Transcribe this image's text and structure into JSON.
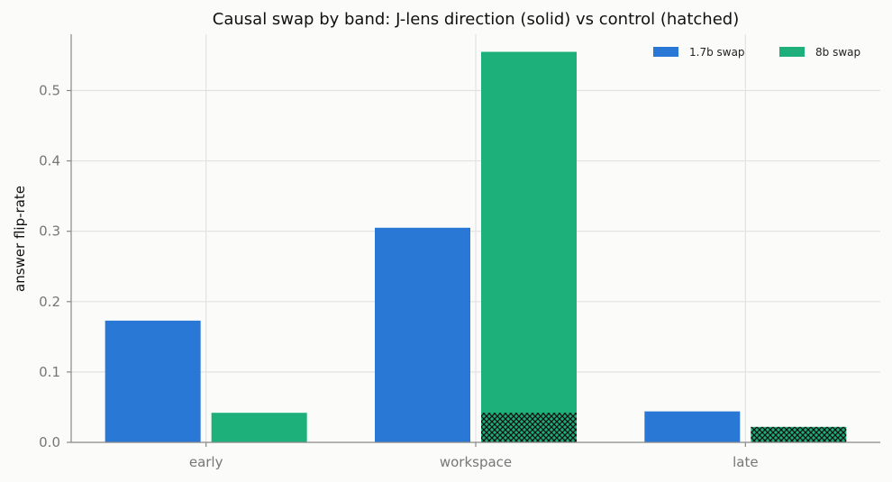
{
  "chart_data": {
    "type": "bar",
    "title": "Causal swap by band: J-lens direction (solid) vs control (hatched)",
    "xlabel": "",
    "ylabel": "answer flip-rate",
    "categories": [
      "early",
      "workspace",
      "late"
    ],
    "ylim": [
      0,
      0.58
    ],
    "yticks": [
      0.0,
      0.1,
      0.2,
      0.3,
      0.4,
      0.5
    ],
    "ytick_labels": [
      "0.0",
      "0.1",
      "0.2",
      "0.3",
      "0.4",
      "0.5"
    ],
    "grid": true,
    "legend_position": "top-right",
    "series": [
      {
        "name": "1.7b swap",
        "color": "#2a78d6",
        "values": [
          0.173,
          0.305,
          0.044
        ],
        "control_values": [
          0.0,
          0.0,
          0.0
        ]
      },
      {
        "name": "8b swap",
        "color": "#1db07a",
        "values": [
          0.042,
          0.555,
          0.0
        ],
        "control_values": [
          0.0,
          0.042,
          0.022
        ]
      }
    ]
  }
}
